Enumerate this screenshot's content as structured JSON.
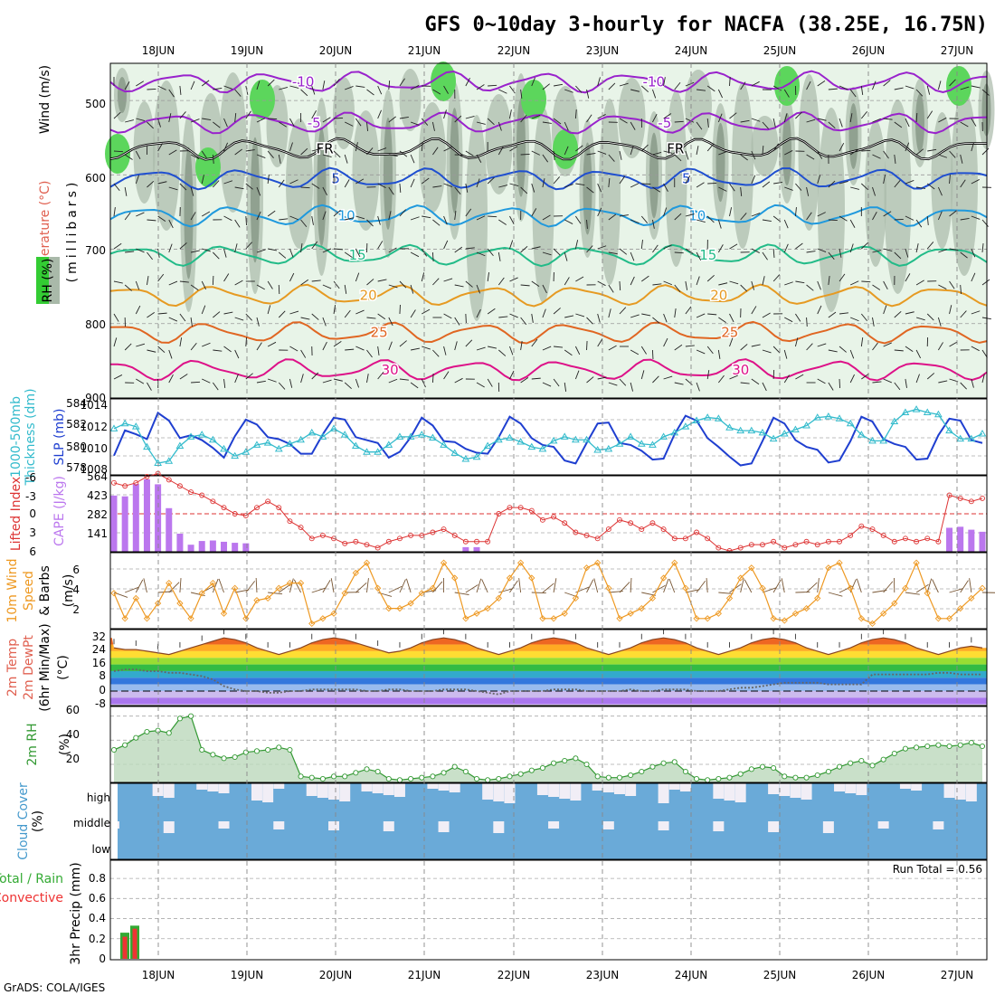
{
  "title": "GFS 0~10day 3-hourly for NACFA (38.25E, 16.75N)",
  "footer": "GrADS: COLA/IGES",
  "dates": [
    "18JUN",
    "19JUN",
    "20JUN",
    "21JUN",
    "22JUN",
    "23JUN",
    "24JUN",
    "25JUN",
    "26JUN",
    "27JUN"
  ],
  "run_total": "Run Total = 0.56",
  "colors": {
    "rh_dark": "#6b7f6b",
    "rh_mid": "#a9b9a9",
    "rh_light": "#e8f4e8",
    "rh_green": "#5cd65c",
    "slp": "#1f3fd0",
    "thickness": "#33bbcc",
    "lifted": "#dd3333",
    "cape": "#bb77ee",
    "wind": "#ee9922",
    "rh2m": "#339933",
    "cloud": "#6aaad8",
    "rain": "#33aa33",
    "conv": "#ee3333"
  },
  "chart_data": [
    {
      "type": "contour",
      "panel": "upper",
      "ylabels": [
        "Temperature (°C)",
        "Wind (m/s)",
        "(millibars)",
        "RH (%)"
      ],
      "yticks": [
        "500",
        "600",
        "700",
        "800",
        "900"
      ],
      "ylim": [
        450,
        900
      ],
      "temperature_contours": [
        {
          "value": -10,
          "label": "-10",
          "pressure": 475,
          "color": "#9922cc"
        },
        {
          "value": -5,
          "label": "-5",
          "pressure": 530,
          "color": "#9922cc"
        },
        {
          "value": 0,
          "label": "FR",
          "pressure": 565,
          "color": "#000000"
        },
        {
          "value": 5,
          "label": "5",
          "pressure": 605,
          "color": "#1f4fd0"
        },
        {
          "value": 10,
          "label": "10",
          "pressure": 655,
          "color": "#1f99dd"
        },
        {
          "value": 15,
          "label": "15",
          "pressure": 708,
          "color": "#22bb88"
        },
        {
          "value": 20,
          "label": "20",
          "pressure": 762,
          "color": "#e69a22"
        },
        {
          "value": 25,
          "label": "25",
          "pressure": 812,
          "color": "#e06622"
        },
        {
          "value": 30,
          "label": "30",
          "pressure": 862,
          "color": "#dd1188"
        }
      ]
    },
    {
      "type": "line",
      "panel": "pressure",
      "ylabels_left": [
        "1000-500mb",
        "Thickness (dm)"
      ],
      "ylabel_right": "SLP (mb)",
      "yticks_left": [
        "584",
        "582",
        "580",
        "578"
      ],
      "yticks_right": [
        "1014",
        "1012",
        "1010",
        "1008"
      ],
      "series": [
        {
          "name": "SLP (mb)",
          "color": "#1f3fd0",
          "values": [
            1009.4,
            1012.0,
            1011.6,
            1011.1,
            1013.8,
            1013.0,
            1011.2,
            1011.5,
            1011.0,
            1010.2,
            1009.2,
            1011.4,
            1013.1,
            1012.6,
            1011.3,
            1011.1,
            1010.6,
            1009.6,
            1009.6,
            1011.6,
            1013.3,
            1013.1,
            1011.3,
            1011.0,
            1010.7,
            1009.2,
            1009.8,
            1011.3,
            1013.3,
            1012.5,
            1010.9,
            1010.8,
            1010.1,
            1009.7,
            1009.6,
            1011.3,
            1013.4,
            1012.7,
            1011.2,
            1010.5,
            1010.3,
            1008.9,
            1008.6,
            1010.7,
            1012.7,
            1012.8,
            1010.7,
            1010.5,
            1009.9,
            1009.0,
            1009.1,
            1011.6,
            1013.5,
            1013.0,
            1011.2,
            1010.3,
            1009.3,
            1008.4,
            1008.6,
            1010.9,
            1013.3,
            1012.7,
            1011.0,
            1010.3,
            1010.0,
            1008.7,
            1008.9,
            1010.9,
            1013.4,
            1012.9,
            1011.1,
            1010.6,
            1010.3,
            1009.0,
            1009.1,
            1011.5,
            1013.2,
            1013.0,
            1011.0,
            1010.7
          ]
        },
        {
          "name": "1000-500mb Thickness (dm)",
          "color": "#33bbcc",
          "values": [
            581.8,
            582.3,
            582.0,
            580.0,
            578.4,
            578.6,
            580.1,
            581.0,
            581.2,
            580.7,
            579.8,
            579.1,
            579.5,
            580.2,
            580.4,
            579.8,
            580.3,
            580.7,
            581.4,
            581.0,
            581.8,
            581.2,
            580.1,
            579.5,
            579.5,
            580.2,
            581.0,
            581.0,
            581.2,
            580.9,
            580.2,
            579.4,
            578.8,
            579.0,
            580.1,
            580.7,
            580.9,
            580.5,
            580.0,
            579.8,
            580.6,
            581.0,
            580.7,
            580.7,
            579.7,
            579.8,
            580.3,
            581.0,
            580.3,
            580.2,
            581.0,
            581.4,
            582.0,
            582.6,
            582.9,
            582.8,
            581.9,
            581.6,
            581.6,
            581.4,
            580.8,
            581.3,
            581.7,
            582.1,
            582.9,
            583.0,
            582.8,
            582.3,
            581.2,
            580.6,
            580.6,
            582.5,
            583.4,
            583.7,
            583.4,
            583.2,
            581.6,
            580.8,
            580.8,
            581.3
          ]
        }
      ]
    },
    {
      "type": "bar+line",
      "panel": "stability",
      "ylabels_left": [
        "Lifted Index"
      ],
      "ylabel_right": "CAPE (J/kg)",
      "yticks_left": [
        "-6",
        "-3",
        "0",
        "3",
        "6"
      ],
      "yticks_right": [
        "564",
        "423",
        "282",
        "141"
      ],
      "lifted_index": [
        -5.0,
        -4.5,
        -5.0,
        -6.0,
        -6.5,
        -5.5,
        -4.5,
        -3.5,
        -3.0,
        -2.0,
        -1.0,
        0.0,
        0.3,
        -1.0,
        -2.0,
        -1.0,
        1.2,
        2.2,
        4.0,
        3.5,
        4.0,
        4.8,
        4.5,
        5.0,
        5.5,
        4.5,
        4.0,
        3.5,
        3.5,
        3.0,
        2.5,
        3.5,
        4.5,
        4.5,
        4.5,
        0.0,
        -1.0,
        -1.0,
        -0.5,
        1.0,
        0.5,
        1.5,
        3.0,
        3.5,
        4.0,
        2.5,
        1.0,
        1.5,
        2.5,
        1.5,
        2.5,
        4.0,
        4.0,
        3.0,
        4.0,
        5.5,
        6.0,
        5.5,
        5.0,
        5.0,
        4.5,
        5.5,
        5.0,
        4.5,
        5.0,
        4.5,
        4.5,
        3.5,
        2.0,
        2.5,
        3.5,
        4.5,
        4.0,
        4.5,
        4.0,
        4.5,
        -3.0,
        -2.5,
        -2.0,
        -2.5
      ],
      "cape": [
        438,
        432,
        528,
        564,
        526,
        340,
        141,
        55,
        84,
        88,
        78,
        70,
        66,
        0,
        0,
        0,
        0,
        0,
        0,
        0,
        0,
        0,
        0,
        0,
        0,
        0,
        0,
        0,
        0,
        0,
        0,
        0,
        36,
        36,
        0,
        0,
        0,
        0,
        0,
        0,
        0,
        0,
        0,
        0,
        0,
        0,
        0,
        0,
        0,
        0,
        0,
        0,
        0,
        0,
        0,
        0,
        0,
        0,
        0,
        0,
        0,
        0,
        0,
        0,
        0,
        0,
        0,
        0,
        0,
        0,
        0,
        0,
        0,
        0,
        0,
        0,
        187,
        195,
        172,
        156
      ]
    },
    {
      "type": "line",
      "panel": "wind10m",
      "ylabels": [
        "10m Wind",
        "Speed",
        "& Barbs",
        "(m/s)"
      ],
      "yticks": [
        "6",
        "4",
        "2"
      ],
      "values": [
        3.5,
        1.0,
        3.0,
        1.0,
        2.5,
        4.5,
        2.5,
        1.0,
        3.5,
        4.5,
        1.5,
        4.0,
        1.0,
        2.8,
        3.0,
        4.0,
        4.5,
        4.5,
        0.5,
        1.0,
        1.5,
        3.5,
        5.5,
        6.5,
        4.0,
        2.0,
        2.0,
        2.5,
        3.5,
        4.0,
        6.5,
        5.0,
        1.0,
        1.5,
        2.0,
        3.0,
        5.0,
        6.5,
        5.0,
        1.0,
        1.0,
        1.5,
        3.0,
        6.0,
        6.5,
        4.0,
        1.0,
        1.5,
        2.0,
        3.0,
        5.0,
        6.5,
        4.0,
        1.0,
        1.0,
        1.5,
        3.0,
        5.0,
        6.0,
        4.0,
        1.0,
        0.8,
        1.5,
        2.0,
        3.0,
        6.0,
        6.5,
        4.0,
        1.0,
        0.5,
        1.5,
        2.5,
        4.0,
        6.5,
        3.5,
        1.0,
        1.0,
        2.0,
        3.0,
        4.0
      ]
    },
    {
      "type": "area+line",
      "panel": "temp2m",
      "ylabels": [
        "2m Temp",
        "2m DewPt",
        "(6hr Min/Max)",
        "(°C)"
      ],
      "yticks": [
        "32",
        "24",
        "16",
        "8",
        "0",
        "-8"
      ],
      "temperature": [
        26,
        25,
        25,
        24,
        23,
        22,
        24,
        26,
        28,
        30,
        32,
        31,
        29,
        26,
        24,
        22,
        24,
        26,
        29,
        31,
        32,
        31,
        29,
        27,
        25,
        23,
        24,
        26,
        29,
        31,
        32,
        31,
        29,
        26,
        24,
        22,
        24,
        26,
        29,
        31,
        32,
        31,
        29,
        26,
        24,
        22,
        24,
        26,
        29,
        31,
        32,
        31,
        29,
        26,
        24,
        22,
        24,
        26,
        29,
        31,
        32,
        31,
        29,
        26,
        24,
        22,
        24,
        26,
        29,
        31,
        32,
        31,
        29,
        26,
        24,
        22,
        24,
        26,
        27,
        26
      ],
      "dewpoint": [
        12,
        13,
        13,
        12,
        12,
        11,
        11,
        10,
        9,
        7,
        3,
        1,
        0,
        0,
        -1,
        -1,
        0,
        0,
        1,
        1,
        1,
        1,
        1,
        0,
        0,
        1,
        1,
        0,
        0,
        0,
        1,
        1,
        1,
        0,
        -1,
        -2,
        0,
        0,
        0,
        0,
        1,
        1,
        1,
        0,
        0,
        0,
        0,
        1,
        0,
        0,
        1,
        1,
        1,
        0,
        0,
        0,
        1,
        2,
        2,
        3,
        4,
        5,
        5,
        5,
        5,
        4,
        4,
        4,
        4,
        10,
        10,
        10,
        10,
        10,
        10,
        11,
        11,
        10,
        10,
        10
      ]
    },
    {
      "type": "area",
      "panel": "rh2m",
      "ylabels": [
        "2m RH",
        "(%)"
      ],
      "yticks": [
        "60",
        "40",
        "20"
      ],
      "values": [
        32,
        36,
        42,
        47,
        48,
        46,
        58,
        60,
        32,
        28,
        25,
        26,
        30,
        31,
        32,
        34,
        32,
        10,
        9,
        8,
        10,
        10,
        13,
        16,
        14,
        8,
        7,
        8,
        9,
        10,
        13,
        18,
        14,
        8,
        7,
        8,
        10,
        12,
        15,
        17,
        21,
        23,
        25,
        20,
        10,
        9,
        9,
        11,
        14,
        18,
        21,
        22,
        14,
        8,
        7,
        8,
        9,
        12,
        16,
        18,
        17,
        10,
        9,
        9,
        11,
        14,
        18,
        21,
        23,
        19,
        24,
        29,
        33,
        34,
        35,
        36,
        35,
        36,
        38,
        35
      ]
    },
    {
      "type": "heatmap",
      "panel": "cloud",
      "ylabels": [
        "Cloud Cover",
        "(%)"
      ],
      "rows": [
        "high",
        "middle",
        "low"
      ]
    },
    {
      "type": "bar",
      "panel": "precip",
      "ylabels": [
        "Total / Rain",
        "Convective",
        "3hr Precip (mm)"
      ],
      "yticks": [
        "0.8",
        "0.6",
        "0.4",
        "0.2",
        "0"
      ],
      "rain": [
        0.26,
        0.33
      ],
      "convective": [
        0.22,
        0.3
      ]
    }
  ]
}
